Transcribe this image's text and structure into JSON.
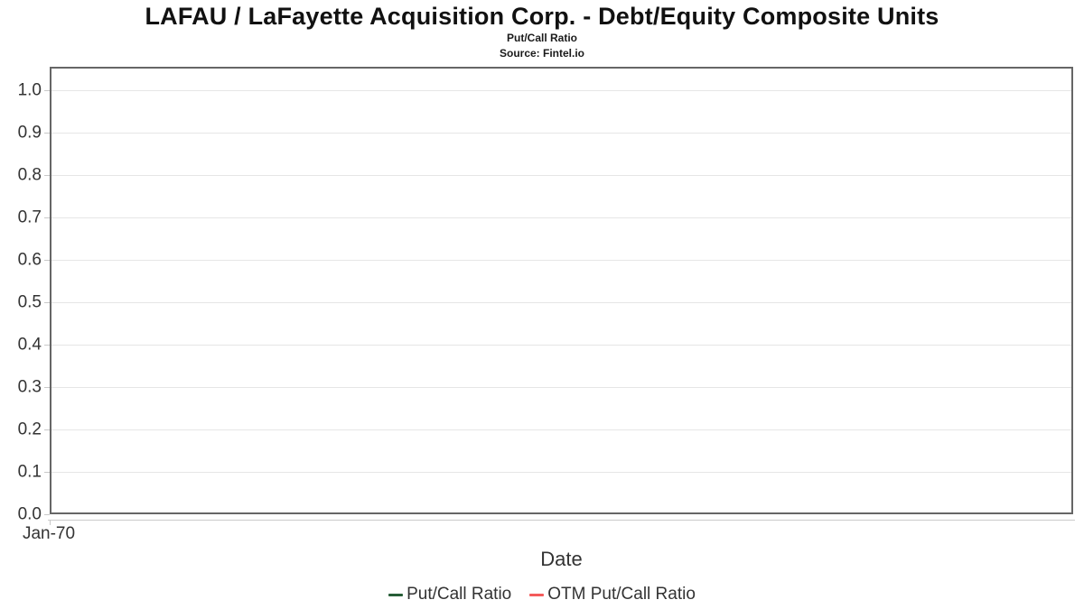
{
  "header": {
    "title": "LAFAU / LaFayette Acquisition Corp. - Debt/Equity Composite Units",
    "subtitle": "Put/Call Ratio",
    "source": "Source: Fintel.io"
  },
  "chart_data": {
    "type": "line",
    "title": "LAFAU / LaFayette Acquisition Corp. - Debt/Equity Composite Units",
    "subtitle": "Put/Call Ratio",
    "source": "Source: Fintel.io",
    "xlabel": "Date",
    "ylabel": "",
    "ylim": [
      0.0,
      1.0
    ],
    "ytick_labels": [
      "0.0",
      "0.1",
      "0.2",
      "0.3",
      "0.4",
      "0.5",
      "0.6",
      "0.7",
      "0.8",
      "0.9",
      "1.0"
    ],
    "xtick_labels": [
      "Jan-70"
    ],
    "grid": true,
    "legend_position": "bottom",
    "plot_border_color": "#666666",
    "grid_color": "#e6e6e6",
    "series": [
      {
        "name": "Put/Call Ratio",
        "color": "#275e37",
        "x": [],
        "values": []
      },
      {
        "name": "OTM Put/Call Ratio",
        "color": "#f45b5b",
        "x": [],
        "values": []
      }
    ]
  }
}
